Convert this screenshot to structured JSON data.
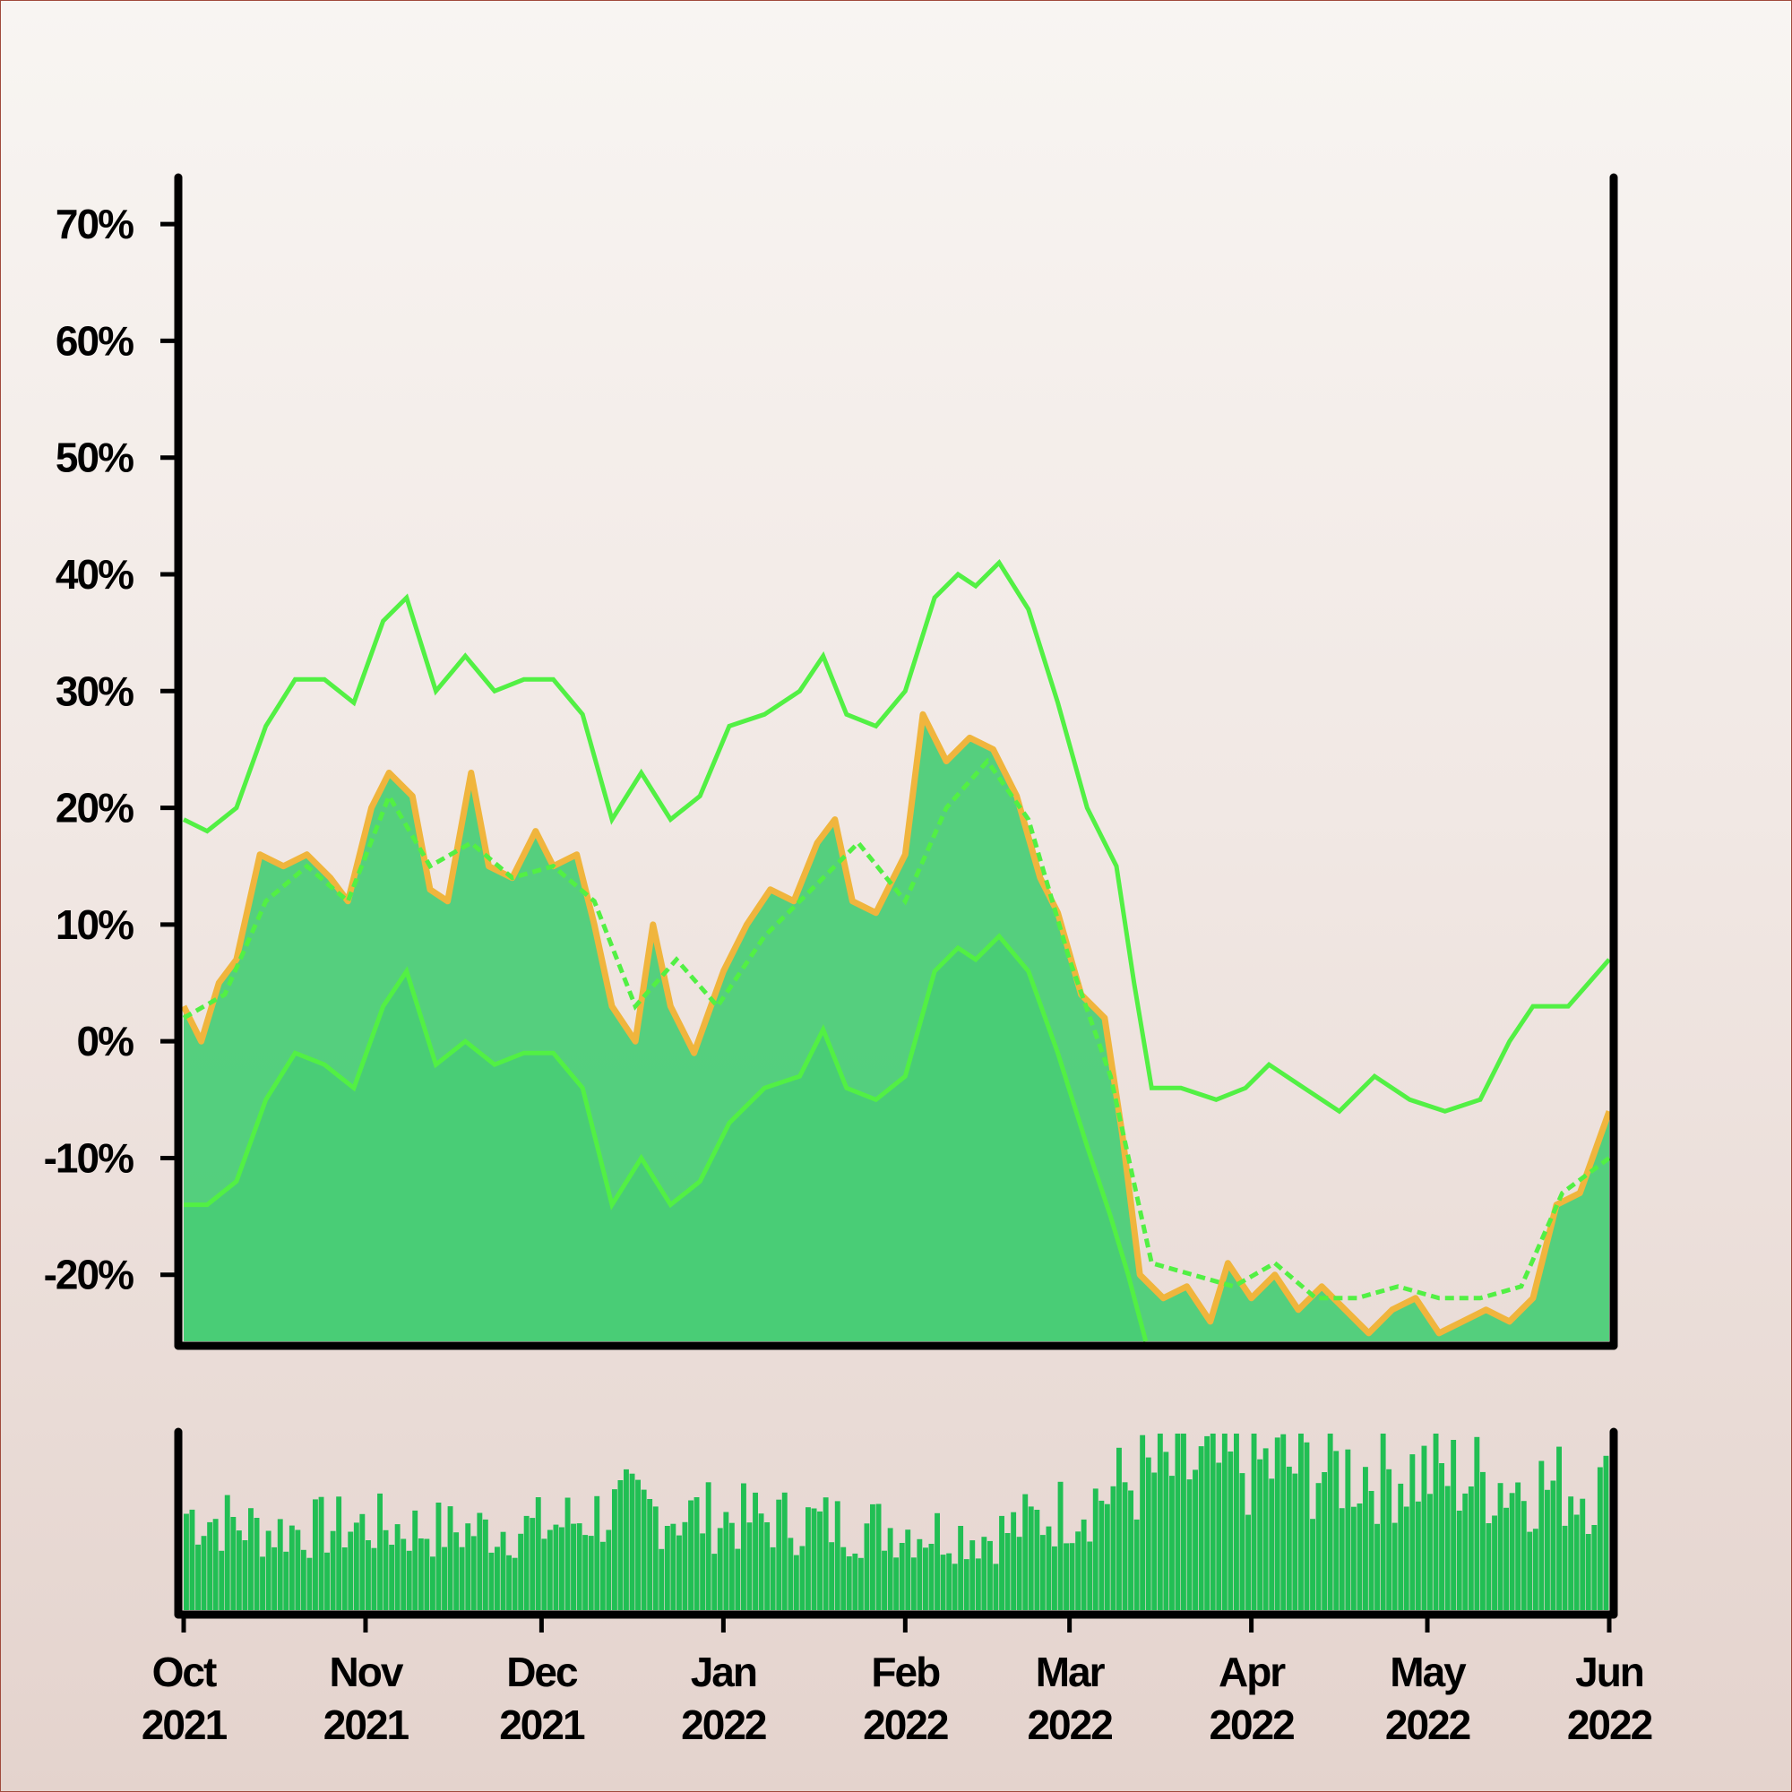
{
  "chart_data": {
    "type": "area",
    "x_range": [
      "2021-10-01",
      "2022-06-01"
    ],
    "y_ticks": [
      {
        "value": 70,
        "label": "70%"
      },
      {
        "value": 60,
        "label": "60%"
      },
      {
        "value": 50,
        "label": "50%"
      },
      {
        "value": 40,
        "label": "40%"
      },
      {
        "value": 30,
        "label": "30%"
      },
      {
        "value": 20,
        "label": "20%"
      },
      {
        "value": 10,
        "label": "10%"
      },
      {
        "value": 0,
        "label": "0%"
      },
      {
        "value": -10,
        "label": "-10%"
      },
      {
        "value": -20,
        "label": "-20%"
      }
    ],
    "ylim": [
      -25.7,
      74
    ],
    "x_ticks": [
      {
        "date": "2021-10-01",
        "label1": "Oct",
        "label2": "2021"
      },
      {
        "date": "2021-11-01",
        "label1": "Nov",
        "label2": "2021"
      },
      {
        "date": "2021-12-01",
        "label1": "Dec",
        "label2": "2021"
      },
      {
        "date": "2022-01-01",
        "label1": "Jan",
        "label2": "2022"
      },
      {
        "date": "2022-02-01",
        "label1": "Feb",
        "label2": "2022"
      },
      {
        "date": "2022-03-01",
        "label1": "Mar",
        "label2": "2022"
      },
      {
        "date": "2022-04-01",
        "label1": "Apr",
        "label2": "2022"
      },
      {
        "date": "2022-05-01",
        "label1": "May",
        "label2": "2022"
      },
      {
        "date": "2022-06-01",
        "label1": "Jun",
        "label2": "2022"
      }
    ],
    "grid": false,
    "series": [
      {
        "role": "return_area",
        "values": [
          [
            "2021-10-01",
            3
          ],
          [
            "2021-10-04",
            0
          ],
          [
            "2021-10-07",
            5
          ],
          [
            "2021-10-10",
            7
          ],
          [
            "2021-10-14",
            16
          ],
          [
            "2021-10-18",
            15
          ],
          [
            "2021-10-22",
            16
          ],
          [
            "2021-10-26",
            14
          ],
          [
            "2021-10-29",
            12
          ],
          [
            "2021-11-02",
            20
          ],
          [
            "2021-11-05",
            23
          ],
          [
            "2021-11-09",
            21
          ],
          [
            "2021-11-12",
            13
          ],
          [
            "2021-11-15",
            12
          ],
          [
            "2021-11-19",
            23
          ],
          [
            "2021-11-22",
            15
          ],
          [
            "2021-11-26",
            14
          ],
          [
            "2021-11-30",
            18
          ],
          [
            "2021-12-03",
            15
          ],
          [
            "2021-12-07",
            16
          ],
          [
            "2021-12-10",
            10
          ],
          [
            "2021-12-13",
            3
          ],
          [
            "2021-12-17",
            0
          ],
          [
            "2021-12-20",
            10
          ],
          [
            "2021-12-23",
            3
          ],
          [
            "2021-12-27",
            -1
          ],
          [
            "2022-01-01",
            6
          ],
          [
            "2022-01-05",
            10
          ],
          [
            "2022-01-09",
            13
          ],
          [
            "2022-01-13",
            12
          ],
          [
            "2022-01-17",
            17
          ],
          [
            "2022-01-20",
            19
          ],
          [
            "2022-01-23",
            12
          ],
          [
            "2022-01-27",
            11
          ],
          [
            "2022-02-01",
            16
          ],
          [
            "2022-02-04",
            28
          ],
          [
            "2022-02-08",
            24
          ],
          [
            "2022-02-12",
            26
          ],
          [
            "2022-02-16",
            25
          ],
          [
            "2022-02-20",
            21
          ],
          [
            "2022-02-24",
            14
          ],
          [
            "2022-02-27",
            11
          ],
          [
            "2022-03-03",
            4
          ],
          [
            "2022-03-07",
            2
          ],
          [
            "2022-03-10",
            -8
          ],
          [
            "2022-03-13",
            -20
          ],
          [
            "2022-03-17",
            -22
          ],
          [
            "2022-03-21",
            -21
          ],
          [
            "2022-03-25",
            -24
          ],
          [
            "2022-03-28",
            -19
          ],
          [
            "2022-04-01",
            -22
          ],
          [
            "2022-04-05",
            -20
          ],
          [
            "2022-04-09",
            -23
          ],
          [
            "2022-04-13",
            -21
          ],
          [
            "2022-04-17",
            -23
          ],
          [
            "2022-04-21",
            -25
          ],
          [
            "2022-04-25",
            -23
          ],
          [
            "2022-04-29",
            -22
          ],
          [
            "2022-05-03",
            -25
          ],
          [
            "2022-05-07",
            -24
          ],
          [
            "2022-05-11",
            -23
          ],
          [
            "2022-05-15",
            -24
          ],
          [
            "2022-05-19",
            -22
          ],
          [
            "2022-05-23",
            -14
          ],
          [
            "2022-05-27",
            -13
          ],
          [
            "2022-06-01",
            -6
          ]
        ]
      },
      {
        "role": "moving_average_dashed",
        "values": [
          [
            "2021-10-01",
            2
          ],
          [
            "2021-10-08",
            4
          ],
          [
            "2021-10-15",
            12
          ],
          [
            "2021-10-22",
            15
          ],
          [
            "2021-10-29",
            12
          ],
          [
            "2021-11-05",
            21
          ],
          [
            "2021-11-12",
            15
          ],
          [
            "2021-11-19",
            17
          ],
          [
            "2021-11-26",
            14
          ],
          [
            "2021-12-03",
            15
          ],
          [
            "2021-12-10",
            12
          ],
          [
            "2021-12-17",
            3
          ],
          [
            "2021-12-24",
            7
          ],
          [
            "2021-12-31",
            3
          ],
          [
            "2022-01-08",
            9
          ],
          [
            "2022-01-16",
            13
          ],
          [
            "2022-01-24",
            17
          ],
          [
            "2022-02-01",
            12
          ],
          [
            "2022-02-08",
            20
          ],
          [
            "2022-02-15",
            24
          ],
          [
            "2022-02-22",
            19
          ],
          [
            "2022-03-01",
            7
          ],
          [
            "2022-03-08",
            -3
          ],
          [
            "2022-03-15",
            -19
          ],
          [
            "2022-03-22",
            -20
          ],
          [
            "2022-03-29",
            -21
          ],
          [
            "2022-04-05",
            -19
          ],
          [
            "2022-04-12",
            -22
          ],
          [
            "2022-04-19",
            -22
          ],
          [
            "2022-04-26",
            -21
          ],
          [
            "2022-05-03",
            -22
          ],
          [
            "2022-05-10",
            -22
          ],
          [
            "2022-05-17",
            -21
          ],
          [
            "2022-05-24",
            -13
          ],
          [
            "2022-06-01",
            -10
          ]
        ]
      },
      {
        "role": "upper_band",
        "values": [
          [
            "2021-10-01",
            19
          ],
          [
            "2021-10-05",
            18
          ],
          [
            "2021-10-10",
            20
          ],
          [
            "2021-10-15",
            27
          ],
          [
            "2021-10-20",
            31
          ],
          [
            "2021-10-25",
            31
          ],
          [
            "2021-10-30",
            29
          ],
          [
            "2021-11-04",
            36
          ],
          [
            "2021-11-08",
            38
          ],
          [
            "2021-11-13",
            30
          ],
          [
            "2021-11-18",
            33
          ],
          [
            "2021-11-23",
            30
          ],
          [
            "2021-11-28",
            31
          ],
          [
            "2021-12-03",
            31
          ],
          [
            "2021-12-08",
            28
          ],
          [
            "2021-12-13",
            19
          ],
          [
            "2021-12-18",
            23
          ],
          [
            "2021-12-23",
            19
          ],
          [
            "2021-12-28",
            21
          ],
          [
            "2022-01-02",
            27
          ],
          [
            "2022-01-08",
            28
          ],
          [
            "2022-01-14",
            30
          ],
          [
            "2022-01-18",
            33
          ],
          [
            "2022-01-22",
            28
          ],
          [
            "2022-01-27",
            27
          ],
          [
            "2022-02-01",
            30
          ],
          [
            "2022-02-06",
            38
          ],
          [
            "2022-02-10",
            40
          ],
          [
            "2022-02-13",
            39
          ],
          [
            "2022-02-17",
            41
          ],
          [
            "2022-02-22",
            37
          ],
          [
            "2022-02-27",
            29
          ],
          [
            "2022-03-04",
            20
          ],
          [
            "2022-03-09",
            15
          ],
          [
            "2022-03-12",
            5
          ],
          [
            "2022-03-15",
            -4
          ],
          [
            "2022-03-20",
            -4
          ],
          [
            "2022-03-26",
            -5
          ],
          [
            "2022-03-31",
            -4
          ],
          [
            "2022-04-04",
            -2
          ],
          [
            "2022-04-10",
            -4
          ],
          [
            "2022-04-16",
            -6
          ],
          [
            "2022-04-22",
            -3
          ],
          [
            "2022-04-28",
            -5
          ],
          [
            "2022-05-04",
            -6
          ],
          [
            "2022-05-10",
            -5
          ],
          [
            "2022-05-15",
            0
          ],
          [
            "2022-05-19",
            3
          ],
          [
            "2022-05-25",
            3
          ],
          [
            "2022-06-01",
            7
          ]
        ]
      },
      {
        "role": "lower_band",
        "values": [
          [
            "2021-10-01",
            -14
          ],
          [
            "2021-10-05",
            -14
          ],
          [
            "2021-10-10",
            -12
          ],
          [
            "2021-10-15",
            -5
          ],
          [
            "2021-10-20",
            -1
          ],
          [
            "2021-10-25",
            -2
          ],
          [
            "2021-10-30",
            -4
          ],
          [
            "2021-11-04",
            3
          ],
          [
            "2021-11-08",
            6
          ],
          [
            "2021-11-13",
            -2
          ],
          [
            "2021-11-18",
            0
          ],
          [
            "2021-11-23",
            -2
          ],
          [
            "2021-11-28",
            -1
          ],
          [
            "2021-12-03",
            -1
          ],
          [
            "2021-12-08",
            -4
          ],
          [
            "2021-12-13",
            -14
          ],
          [
            "2021-12-18",
            -10
          ],
          [
            "2021-12-23",
            -14
          ],
          [
            "2021-12-28",
            -12
          ],
          [
            "2022-01-02",
            -7
          ],
          [
            "2022-01-08",
            -4
          ],
          [
            "2022-01-14",
            -3
          ],
          [
            "2022-01-18",
            1
          ],
          [
            "2022-01-22",
            -4
          ],
          [
            "2022-01-27",
            -5
          ],
          [
            "2022-02-01",
            -3
          ],
          [
            "2022-02-06",
            6
          ],
          [
            "2022-02-10",
            8
          ],
          [
            "2022-02-13",
            7
          ],
          [
            "2022-02-17",
            9
          ],
          [
            "2022-02-22",
            6
          ],
          [
            "2022-02-27",
            -1
          ],
          [
            "2022-03-04",
            -9
          ],
          [
            "2022-03-08",
            -15
          ],
          [
            "2022-03-11",
            -20
          ],
          [
            "2022-03-14",
            -26
          ]
        ]
      }
    ],
    "volume_panel": {
      "type": "bar",
      "levels": [
        [
          "2021-10-01",
          0.55
        ],
        [
          "2021-10-15",
          0.45
        ],
        [
          "2021-11-01",
          0.48
        ],
        [
          "2021-11-15",
          0.45
        ],
        [
          "2021-12-01",
          0.47
        ],
        [
          "2021-12-15",
          0.58
        ],
        [
          "2022-01-01",
          0.52
        ],
        [
          "2022-01-15",
          0.5
        ],
        [
          "2022-02-01",
          0.46
        ],
        [
          "2022-02-15",
          0.42
        ],
        [
          "2022-03-01",
          0.58
        ],
        [
          "2022-03-15",
          0.78
        ],
        [
          "2022-04-01",
          0.82
        ],
        [
          "2022-04-15",
          0.8
        ],
        [
          "2022-05-01",
          0.78
        ],
        [
          "2022-05-15",
          0.72
        ],
        [
          "2022-06-01",
          0.68
        ]
      ]
    },
    "colors": {
      "area_light": "#4cce78",
      "area_dark": "#21bf54",
      "return_edge": "#f0b53d",
      "band_line": "#52f044",
      "axis": "#000000"
    }
  }
}
